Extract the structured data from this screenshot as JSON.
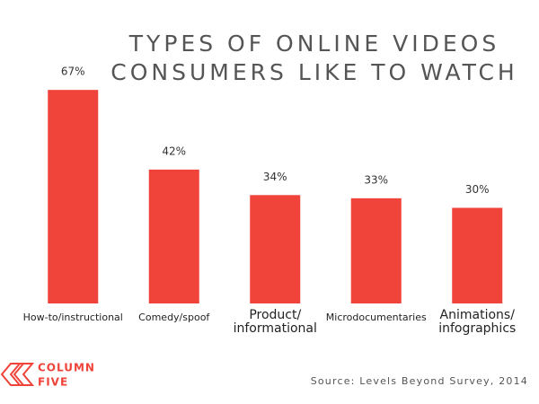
{
  "chart_data": {
    "type": "bar",
    "title": [
      "TYPES OF ONLINE VIDEOS",
      "CONSUMERS LIKE TO WATCH"
    ],
    "categories": [
      "How-to/instructional",
      "Comedy/spoof",
      "Product/ informational",
      "Microdocumentaries",
      "Animations/ infographics"
    ],
    "values": [
      67,
      42,
      34,
      33,
      30
    ],
    "value_labels": [
      "67%",
      "42%",
      "34%",
      "33%",
      "30%"
    ],
    "color": "#f0433a",
    "source": "Source: Levels Beyond Survey, 2014",
    "logo": [
      "COLUMN",
      "FIVE"
    ]
  }
}
